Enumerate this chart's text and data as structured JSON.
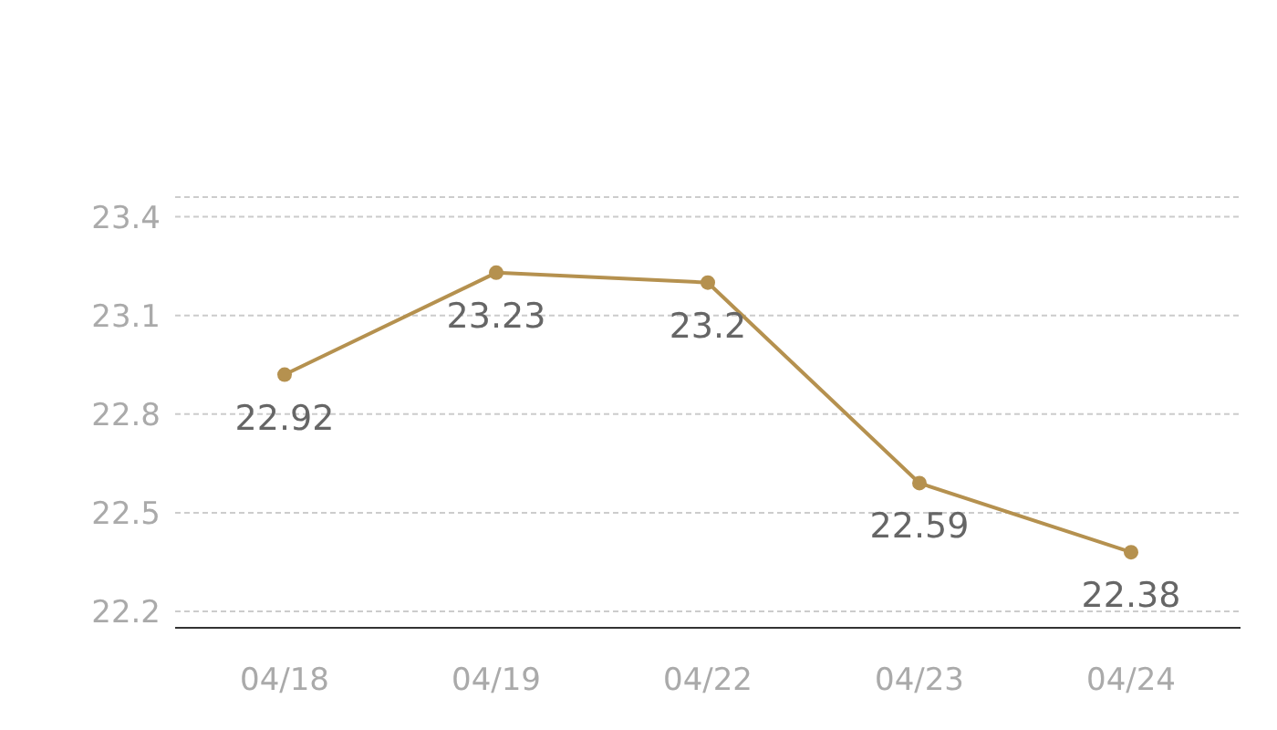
{
  "chart_data": {
    "type": "line",
    "categories": [
      "04/18",
      "04/19",
      "04/22",
      "04/23",
      "04/24"
    ],
    "series": [
      {
        "color": "#b5914f",
        "values": [
          22.92,
          23.23,
          23.2,
          22.59,
          22.38
        ]
      }
    ],
    "ylim": [
      22.15,
      23.46
    ],
    "yticks": [
      22.2,
      22.5,
      22.8,
      23.1,
      23.4
    ],
    "grid": "y",
    "marker": "circle",
    "data_labels": true
  }
}
